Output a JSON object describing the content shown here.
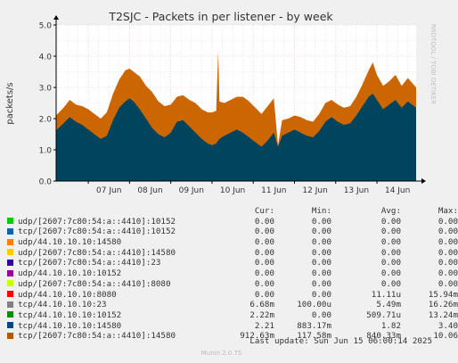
{
  "chart_data": {
    "type": "area",
    "title": "T2SJC - Packets in per listener - by week",
    "ylabel": "packets/s",
    "ylim": [
      0,
      5
    ],
    "yticks": [
      "0.0",
      "1.0",
      "2.0",
      "3.0",
      "4.0",
      "5.0"
    ],
    "ytick_values": [
      0,
      1,
      2,
      3,
      4,
      5
    ],
    "x_tick_labels": [
      "07 Jun",
      "08 Jun",
      "09 Jun",
      "10 Jun",
      "11 Jun",
      "12 Jun",
      "13 Jun",
      "14 Jun"
    ],
    "x_range_days": [
      6.22,
      14.95
    ],
    "grid": true,
    "watermark": "RRDTOOL / TOBI OETIKER",
    "colors": {
      "background": "#f0f0f0",
      "plot_background": "#ffffff",
      "grid_major": "#f0b0b0",
      "grid_minor": "#d8d8d8",
      "series_tcp_14580": "#00455d",
      "series_tcp_ipv6_14580": "#cc6600",
      "axis": "#000000"
    },
    "stack_points": [
      {
        "x": 6.22,
        "base": 1.62,
        "top": 2.1
      },
      {
        "x": 6.4,
        "base": 1.85,
        "top": 2.35
      },
      {
        "x": 6.55,
        "base": 2.05,
        "top": 2.6
      },
      {
        "x": 6.7,
        "base": 1.9,
        "top": 2.45
      },
      {
        "x": 6.85,
        "base": 1.8,
        "top": 2.4
      },
      {
        "x": 7.0,
        "base": 1.65,
        "top": 2.3
      },
      {
        "x": 7.15,
        "base": 1.5,
        "top": 2.15
      },
      {
        "x": 7.3,
        "base": 1.35,
        "top": 2.0
      },
      {
        "x": 7.45,
        "base": 1.45,
        "top": 2.2
      },
      {
        "x": 7.6,
        "base": 1.95,
        "top": 2.8
      },
      {
        "x": 7.75,
        "base": 2.35,
        "top": 3.25
      },
      {
        "x": 7.9,
        "base": 2.55,
        "top": 3.55
      },
      {
        "x": 8.0,
        "base": 2.65,
        "top": 3.6
      },
      {
        "x": 8.1,
        "base": 2.55,
        "top": 3.5
      },
      {
        "x": 8.25,
        "base": 2.3,
        "top": 3.35
      },
      {
        "x": 8.4,
        "base": 2.0,
        "top": 3.05
      },
      {
        "x": 8.55,
        "base": 1.7,
        "top": 2.85
      },
      {
        "x": 8.7,
        "base": 1.5,
        "top": 2.55
      },
      {
        "x": 8.85,
        "base": 1.4,
        "top": 2.4
      },
      {
        "x": 9.0,
        "base": 1.55,
        "top": 2.45
      },
      {
        "x": 9.15,
        "base": 1.9,
        "top": 2.7
      },
      {
        "x": 9.3,
        "base": 1.95,
        "top": 2.75
      },
      {
        "x": 9.45,
        "base": 1.75,
        "top": 2.6
      },
      {
        "x": 9.6,
        "base": 1.55,
        "top": 2.5
      },
      {
        "x": 9.75,
        "base": 1.35,
        "top": 2.3
      },
      {
        "x": 9.9,
        "base": 1.2,
        "top": 2.2
      },
      {
        "x": 10.0,
        "base": 1.15,
        "top": 2.2
      },
      {
        "x": 10.1,
        "base": 1.2,
        "top": 2.25
      },
      {
        "x": 10.15,
        "base": 1.3,
        "top": 4.15
      },
      {
        "x": 10.18,
        "base": 1.35,
        "top": 2.55
      },
      {
        "x": 10.3,
        "base": 1.45,
        "top": 2.5
      },
      {
        "x": 10.45,
        "base": 1.55,
        "top": 2.6
      },
      {
        "x": 10.6,
        "base": 1.65,
        "top": 2.7
      },
      {
        "x": 10.75,
        "base": 1.55,
        "top": 2.7
      },
      {
        "x": 10.9,
        "base": 1.4,
        "top": 2.55
      },
      {
        "x": 11.05,
        "base": 1.25,
        "top": 2.35
      },
      {
        "x": 11.2,
        "base": 1.1,
        "top": 2.15
      },
      {
        "x": 11.35,
        "base": 1.3,
        "top": 2.4
      },
      {
        "x": 11.5,
        "base": 1.55,
        "top": 2.65
      },
      {
        "x": 11.6,
        "base": 1.1,
        "top": 1.15
      },
      {
        "x": 11.7,
        "base": 1.45,
        "top": 1.95
      },
      {
        "x": 11.85,
        "base": 1.55,
        "top": 2.0
      },
      {
        "x": 12.0,
        "base": 1.65,
        "top": 2.1
      },
      {
        "x": 12.15,
        "base": 1.55,
        "top": 2.05
      },
      {
        "x": 12.3,
        "base": 1.45,
        "top": 1.95
      },
      {
        "x": 12.45,
        "base": 1.4,
        "top": 1.9
      },
      {
        "x": 12.6,
        "base": 1.6,
        "top": 2.15
      },
      {
        "x": 12.75,
        "base": 1.9,
        "top": 2.5
      },
      {
        "x": 12.9,
        "base": 2.05,
        "top": 2.6
      },
      {
        "x": 13.05,
        "base": 1.9,
        "top": 2.45
      },
      {
        "x": 13.2,
        "base": 1.8,
        "top": 2.35
      },
      {
        "x": 13.35,
        "base": 1.85,
        "top": 2.4
      },
      {
        "x": 13.5,
        "base": 2.1,
        "top": 2.7
      },
      {
        "x": 13.65,
        "base": 2.4,
        "top": 3.1
      },
      {
        "x": 13.8,
        "base": 2.7,
        "top": 3.55
      },
      {
        "x": 13.9,
        "base": 2.8,
        "top": 3.8
      },
      {
        "x": 14.0,
        "base": 2.6,
        "top": 3.4
      },
      {
        "x": 14.15,
        "base": 2.3,
        "top": 3.05
      },
      {
        "x": 14.3,
        "base": 2.45,
        "top": 3.2
      },
      {
        "x": 14.45,
        "base": 2.6,
        "top": 3.4
      },
      {
        "x": 14.6,
        "base": 2.35,
        "top": 3.05
      },
      {
        "x": 14.75,
        "base": 2.55,
        "top": 3.3
      },
      {
        "x": 14.95,
        "base": 2.35,
        "top": 3.0
      }
    ],
    "legend": {
      "headers": [
        "Cur:",
        "Min:",
        "Avg:",
        "Max:"
      ],
      "rows": [
        {
          "name": "udp/[2607:7c80:54:a::4410]:10152",
          "color": "#00cc00",
          "cur": "0.00",
          "min": "0.00",
          "avg": "0.00",
          "max": "0.00"
        },
        {
          "name": "tcp/[2607:7c80:54:a::4410]:10152",
          "color": "#0066b3",
          "cur": "0.00",
          "min": "0.00",
          "avg": "0.00",
          "max": "0.00"
        },
        {
          "name": "udp/44.10.10.10:14580",
          "color": "#ff8000",
          "cur": "0.00",
          "min": "0.00",
          "avg": "0.00",
          "max": "0.00"
        },
        {
          "name": "udp/[2607:7c80:54:a::4410]:14580",
          "color": "#ffcc00",
          "cur": "0.00",
          "min": "0.00",
          "avg": "0.00",
          "max": "0.00"
        },
        {
          "name": "tcp/[2607:7c80:54:a::4410]:23",
          "color": "#330099",
          "cur": "0.00",
          "min": "0.00",
          "avg": "0.00",
          "max": "0.00"
        },
        {
          "name": "udp/44.10.10.10:10152",
          "color": "#990099",
          "cur": "0.00",
          "min": "0.00",
          "avg": "0.00",
          "max": "0.00"
        },
        {
          "name": "udp/[2607:7c80:54:a::4410]:8080",
          "color": "#ccff00",
          "cur": "0.00",
          "min": "0.00",
          "avg": "0.00",
          "max": "0.00"
        },
        {
          "name": "udp/44.10.10.10:8080",
          "color": "#ff0000",
          "cur": "0.00",
          "min": "0.00",
          "avg": "11.11u",
          "max": "15.94m"
        },
        {
          "name": "tcp/44.10.10.10:23",
          "color": "#808080",
          "cur": "6.68m",
          "min": "100.00u",
          "avg": "5.49m",
          "max": "16.26m"
        },
        {
          "name": "tcp/44.10.10.10:10152",
          "color": "#008f00",
          "cur": "2.22m",
          "min": "0.00",
          "avg": "509.71u",
          "max": "13.24m"
        },
        {
          "name": "tcp/44.10.10.10:14580",
          "color": "#00487d",
          "cur": "2.21",
          "min": "883.17m",
          "avg": "1.82",
          "max": "3.40"
        },
        {
          "name": "tcp/[2607:7c80:54:a::4410]:14580",
          "color": "#b35a00",
          "cur": "912.63m",
          "min": "117.58m",
          "avg": "840.33m",
          "max": "10.06"
        }
      ]
    }
  },
  "footer": {
    "last_update": "Last update: Sun Jun 15 06:00:14 2025",
    "version": "Munin 2.0.75"
  }
}
